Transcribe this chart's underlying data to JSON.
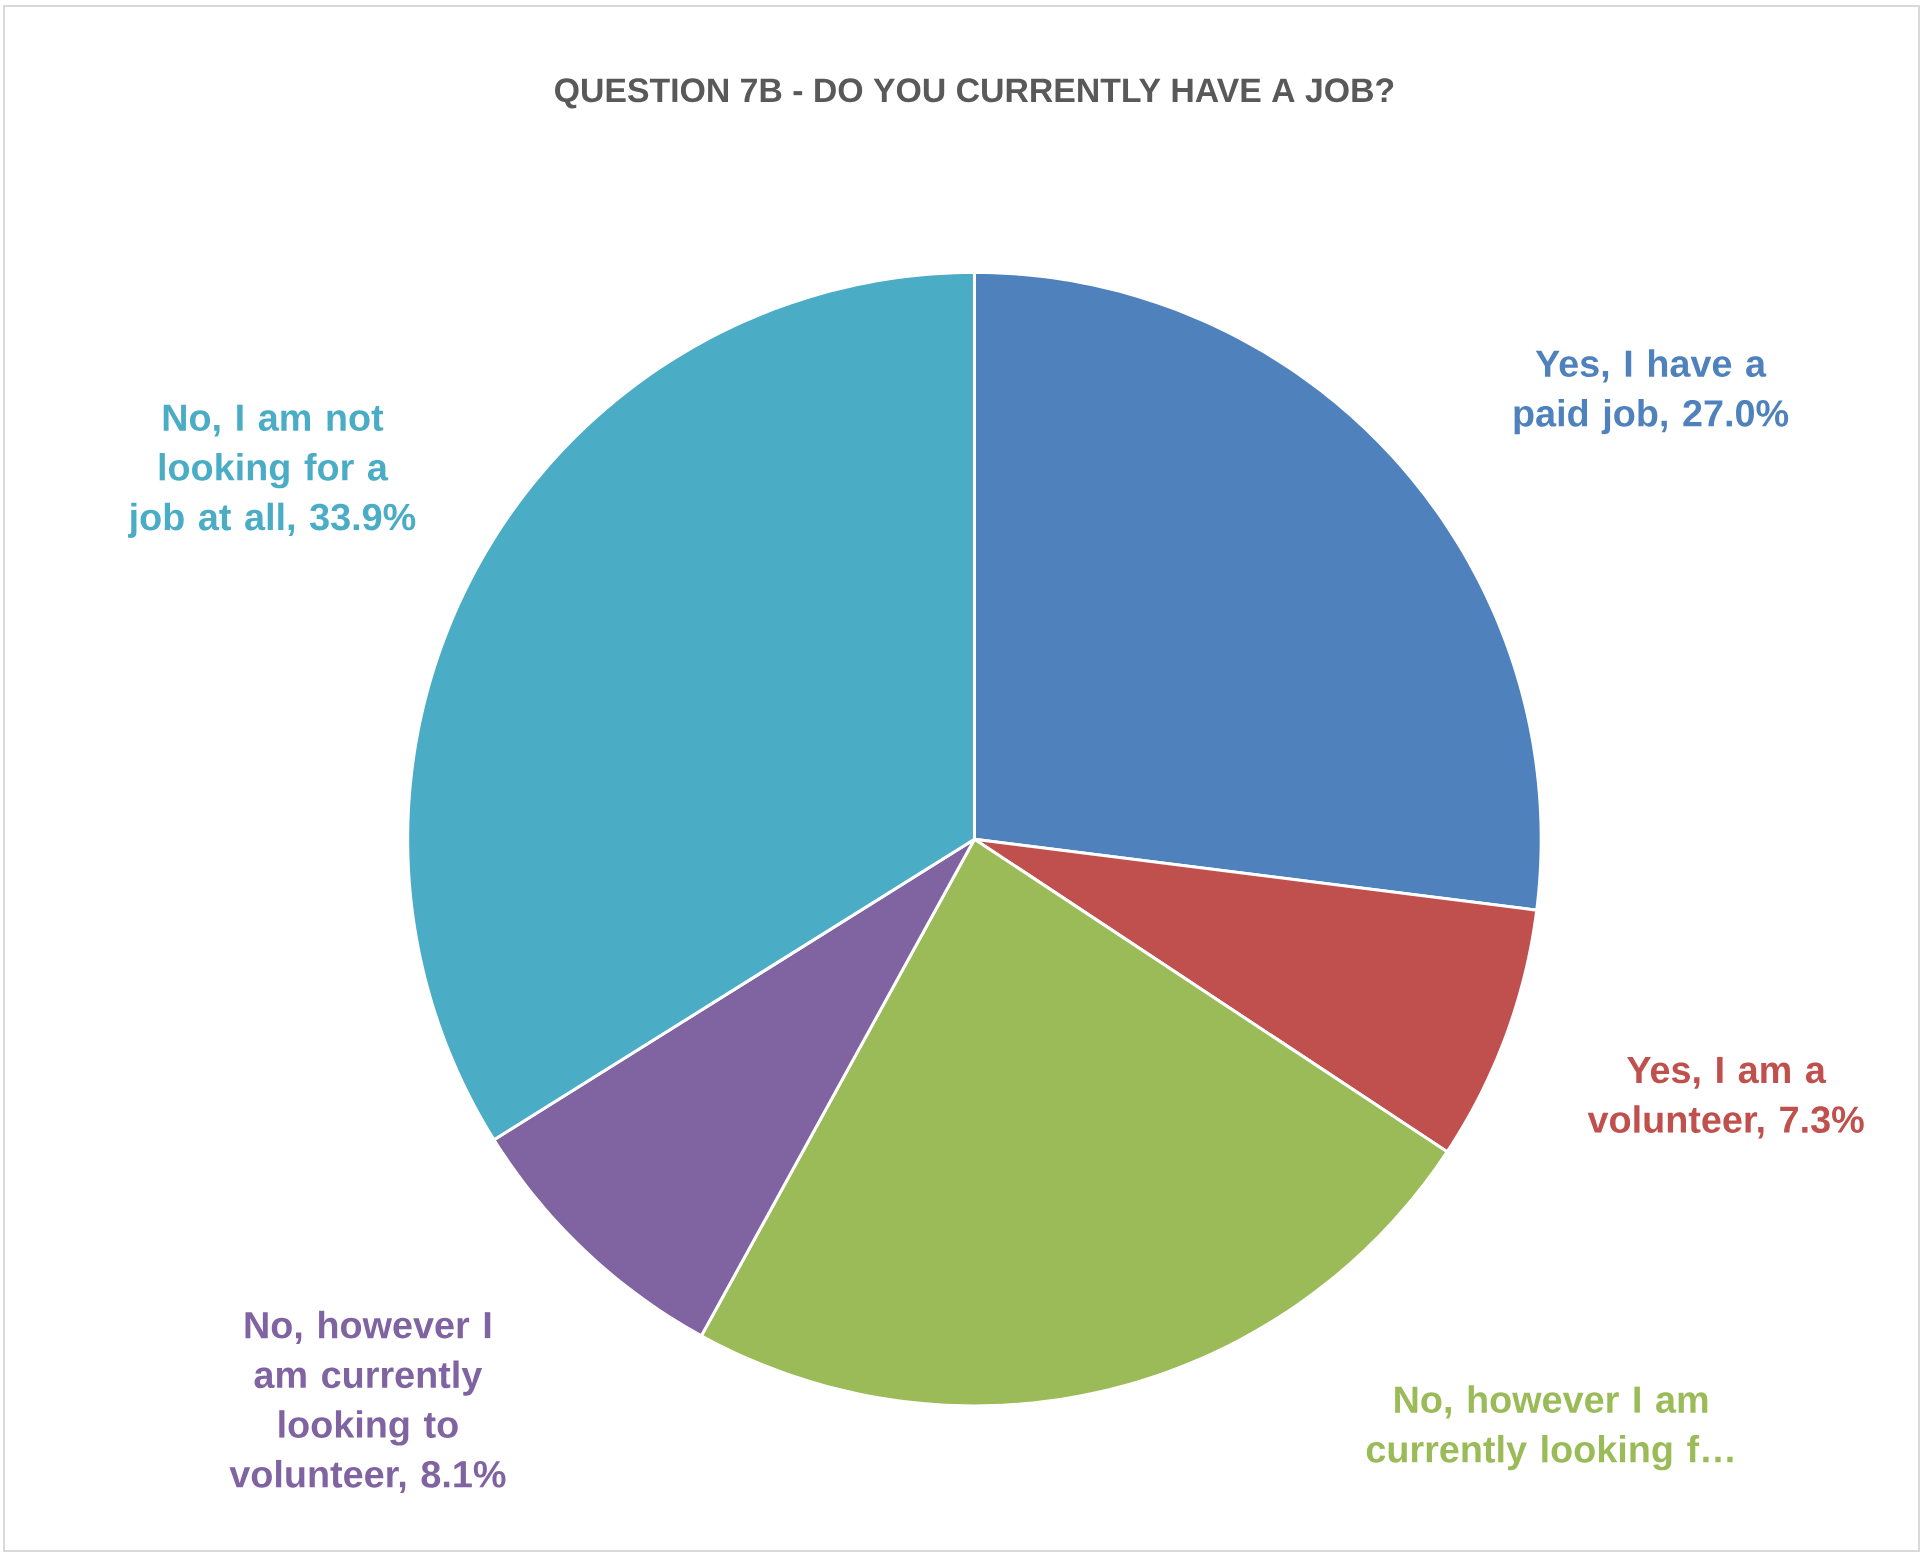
{
  "chart_data": {
    "type": "pie",
    "title": "QUESTION 7B - DO YOU CURRENTLY HAVE A JOB?",
    "categories": [
      "Yes, I have a paid job, 27.0%",
      "Yes, I am a volunteer, 7.3%",
      "No, however I am currently looking f…",
      "No, however I am currently looking  to volunteer, 8.1%",
      "No, I am not looking for a job at all, 33.9%"
    ],
    "values": [
      27.0,
      7.3,
      23.7,
      8.1,
      33.9
    ],
    "colors": [
      "#4f81bd",
      "#c0504d",
      "#9bbb59",
      "#8064a2",
      "#4bacc6"
    ]
  }
}
